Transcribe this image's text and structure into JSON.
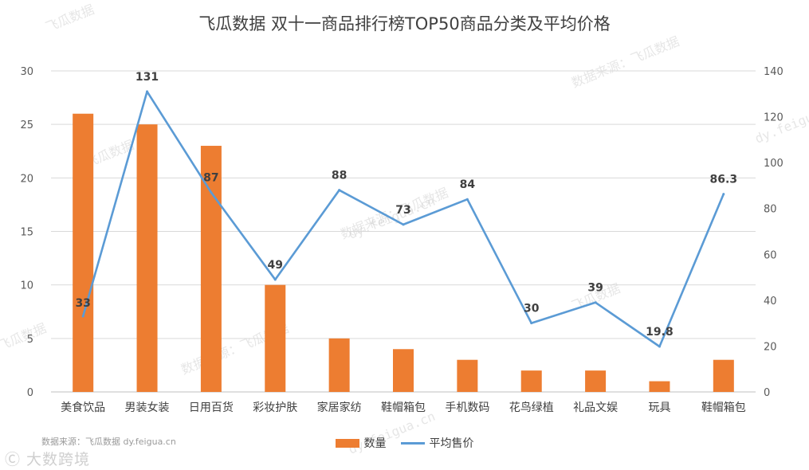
{
  "title": "飞瓜数据 双十一商品排行榜TOP50商品分类及平均价格",
  "source_note": "数据来源：飞瓜数据 dy.feigua.cn",
  "brand_text": "大数跨境",
  "watermarks": [
    "飞瓜数据",
    "数据来源：飞瓜数据",
    "dy.feigua.cn"
  ],
  "colors": {
    "bar": "#ED7D31",
    "line": "#5B9BD5",
    "grid": "#D9D9D9"
  },
  "chart_data": {
    "type": "bar",
    "title": "飞瓜数据 双十一商品排行榜TOP50商品分类及平均价格",
    "categories": [
      "美食饮品",
      "男装女装",
      "日用百货",
      "彩妆护肤",
      "家居家纺",
      "鞋帽箱包",
      "手机数码",
      "花鸟绿植",
      "礼品文娱",
      "玩具",
      "鞋帽箱包"
    ],
    "series": [
      {
        "name": "数量",
        "type": "bar",
        "axis": "left",
        "values": [
          26,
          25,
          23,
          10,
          5,
          4,
          3,
          2,
          2,
          1,
          3
        ]
      },
      {
        "name": "平均售价",
        "type": "line",
        "axis": "right",
        "values": [
          33,
          131,
          87,
          49,
          88,
          73,
          84,
          30,
          39,
          19.8,
          86.3
        ],
        "labels": [
          "33",
          "131",
          "87",
          "49",
          "88",
          "73",
          "84",
          "30",
          "39",
          "19.8",
          "86.3"
        ]
      }
    ],
    "y_left": {
      "ylim": [
        0,
        30
      ],
      "ticks": [
        0,
        5,
        10,
        15,
        20,
        25,
        30
      ]
    },
    "y_right": {
      "ylim": [
        0,
        140
      ],
      "ticks": [
        0,
        20,
        40,
        60,
        80,
        100,
        120,
        140
      ]
    },
    "grid": true,
    "legend_position": "bottom"
  }
}
